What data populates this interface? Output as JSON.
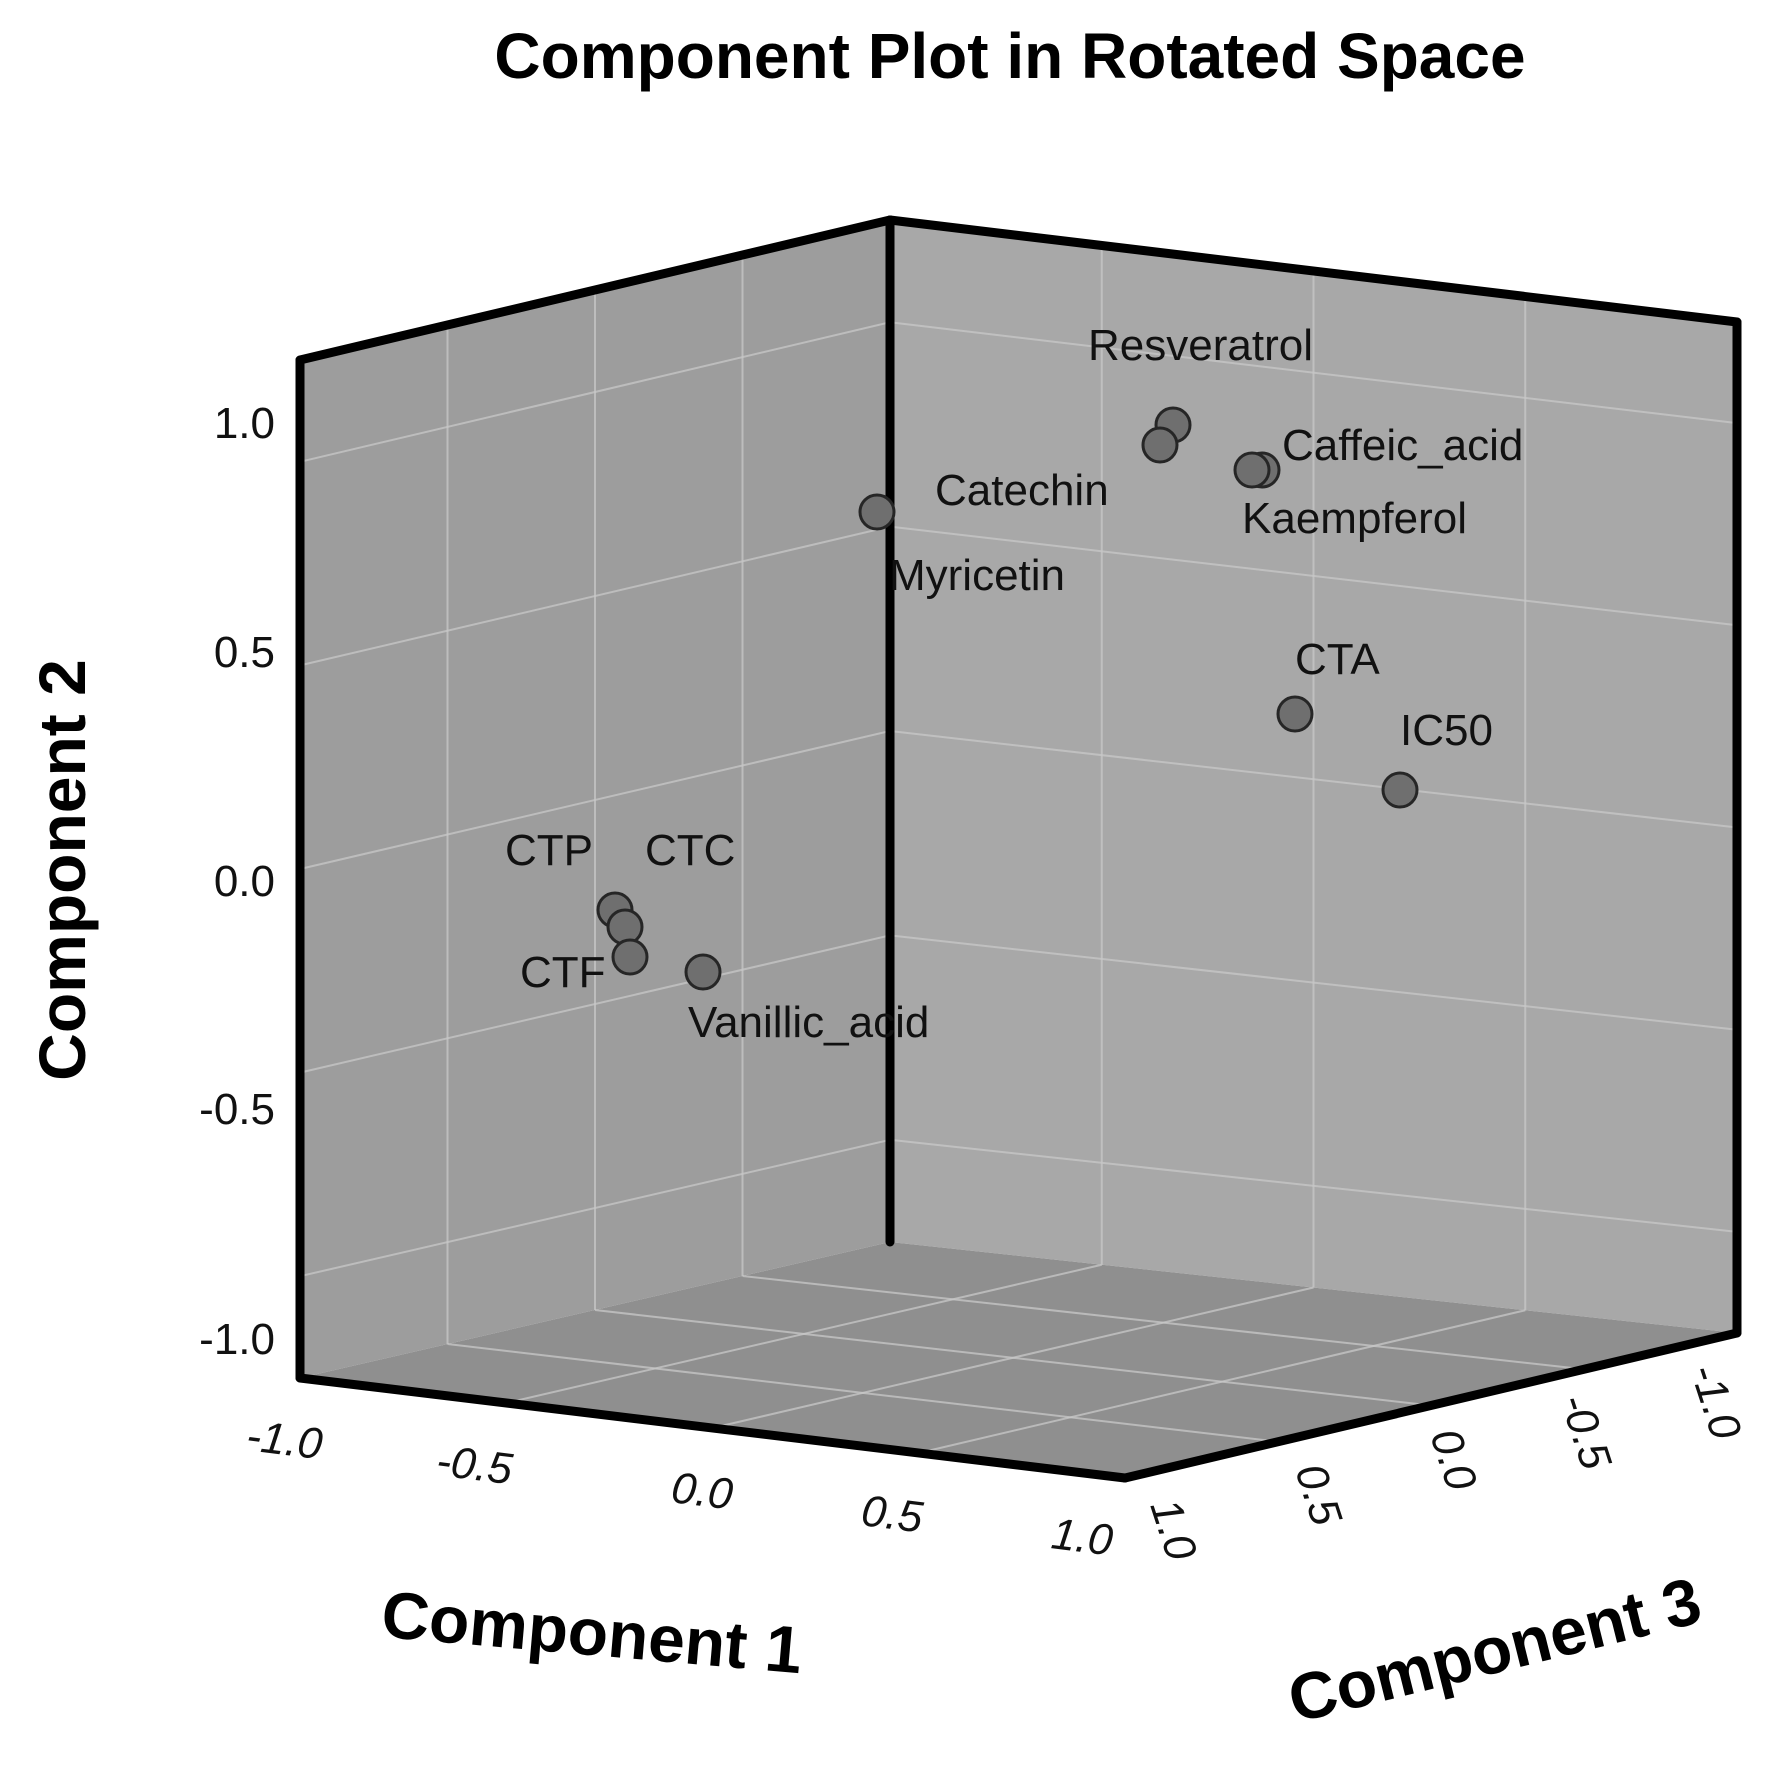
{
  "chart_data": {
    "type": "scatter",
    "projection": "3d",
    "title": "Component Plot in Rotated Space",
    "xlabel": "Component 1",
    "ylabel": "Component 2",
    "zlabel": "Component 3",
    "xlim": [
      -1.0,
      1.0
    ],
    "ylim": [
      -1.0,
      1.0
    ],
    "zlim": [
      -1.0,
      1.0
    ],
    "x_ticks": [
      "-1.0",
      "-0.5",
      "0.0",
      "0.5",
      "1.0"
    ],
    "y_ticks": [
      "1.0",
      "0.5",
      "0.0",
      "-0.5",
      "-1.0"
    ],
    "z_ticks": [
      "1.0",
      "0.5",
      "0.0",
      "-0.5",
      "-1.0"
    ],
    "grid": true,
    "colors": {
      "back_panels": "#a2a2a2",
      "floor": "#8f8f8f",
      "points": "#6f6f6f"
    },
    "points": [
      {
        "label": "Resveratrol",
        "x": 0.85,
        "y": 1.0,
        "z": 0.1
      },
      {
        "label": "Catechin",
        "x": 0.82,
        "y": 0.95,
        "z": 0.15
      },
      {
        "label": "Caffeic_acid",
        "x": 0.95,
        "y": 0.92,
        "z": 0.05
      },
      {
        "label": "Kaempferol",
        "x": 0.9,
        "y": 0.95,
        "z": 0.0
      },
      {
        "label": "Myricetin",
        "x": 0.55,
        "y": 0.85,
        "z": 0.35
      },
      {
        "label": "CTA",
        "x": 0.9,
        "y": 0.3,
        "z": -0.15
      },
      {
        "label": "IC50",
        "x": 1.0,
        "y": 0.1,
        "z": -0.3
      },
      {
        "label": "CTP",
        "x": -0.35,
        "y": -0.2,
        "z": 0.25
      },
      {
        "label": "CTC",
        "x": -0.3,
        "y": -0.2,
        "z": 0.3
      },
      {
        "label": "CTF",
        "x": -0.3,
        "y": -0.3,
        "z": 0.3
      },
      {
        "label": "Vanillic_acid",
        "x": -0.15,
        "y": -0.3,
        "z": 0.3
      }
    ]
  }
}
